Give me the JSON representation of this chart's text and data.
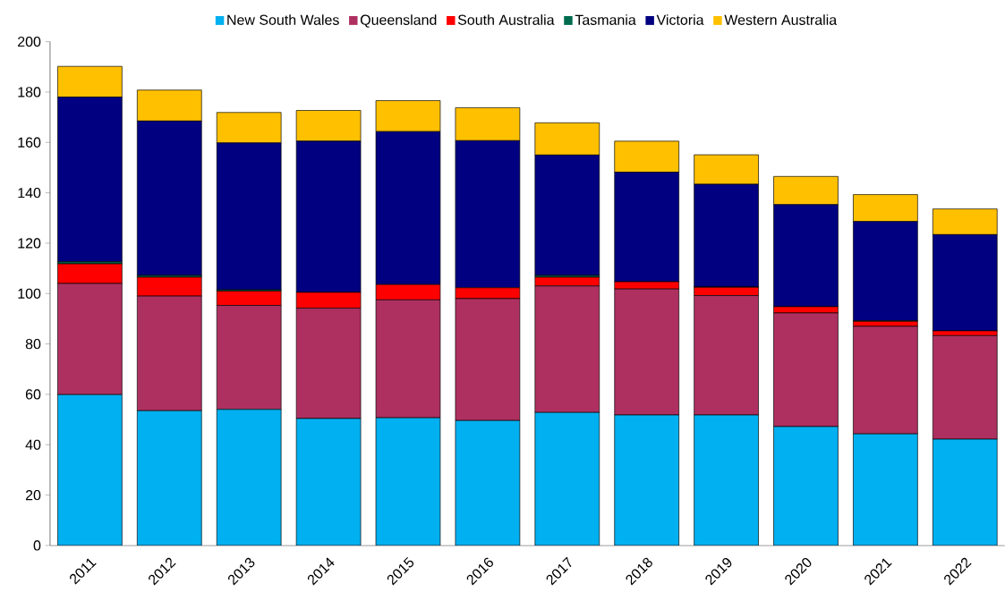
{
  "chart_data": {
    "type": "bar",
    "stacked": true,
    "categories": [
      "2011",
      "2012",
      "2013",
      "2014",
      "2015",
      "2016",
      "2017",
      "2018",
      "2019",
      "2020",
      "2021",
      "2022"
    ],
    "series": [
      {
        "name": "New South Wales",
        "color": "#00b0f0",
        "values": [
          59.9,
          53.5,
          54,
          50.4,
          50.7,
          49.6,
          52.8,
          51.8,
          51.8,
          47.2,
          44.3,
          42.2
        ]
      },
      {
        "name": "Queensland",
        "color": "#ae3060",
        "values": [
          44.1,
          45.5,
          41.3,
          43.8,
          46.8,
          48.4,
          50.2,
          50,
          47.4,
          45.1,
          42.7,
          41.1
        ]
      },
      {
        "name": "South Australia",
        "color": "#ff0000",
        "values": [
          7.8,
          7.5,
          5.7,
          6.3,
          6.1,
          4.3,
          3.5,
          2.9,
          3.3,
          2.5,
          2,
          1.9
        ]
      },
      {
        "name": "Tasmania",
        "color": "#006b4f",
        "values": [
          0.8,
          0.7,
          0.5,
          null,
          null,
          null,
          0.7,
          null,
          0.1,
          null,
          0.2,
          null
        ]
      },
      {
        "name": "Victoria",
        "color": "#000080",
        "values": [
          65.4,
          61.3,
          58.3,
          60,
          60.7,
          58.4,
          47.8,
          43.5,
          40.8,
          40.5,
          39.4,
          38.2
        ]
      },
      {
        "name": "Western Australia",
        "color": "#ffc000",
        "values": [
          12.2,
          12.3,
          12.1,
          12.2,
          12.3,
          13.1,
          12.8,
          12.3,
          11.7,
          11.2,
          10.7,
          10.2
        ]
      }
    ],
    "ylim": [
      0,
      200
    ],
    "yticks": [
      0,
      20,
      40,
      60,
      80,
      100,
      120,
      140,
      160,
      180,
      200
    ],
    "grid": false,
    "legend": "top"
  }
}
